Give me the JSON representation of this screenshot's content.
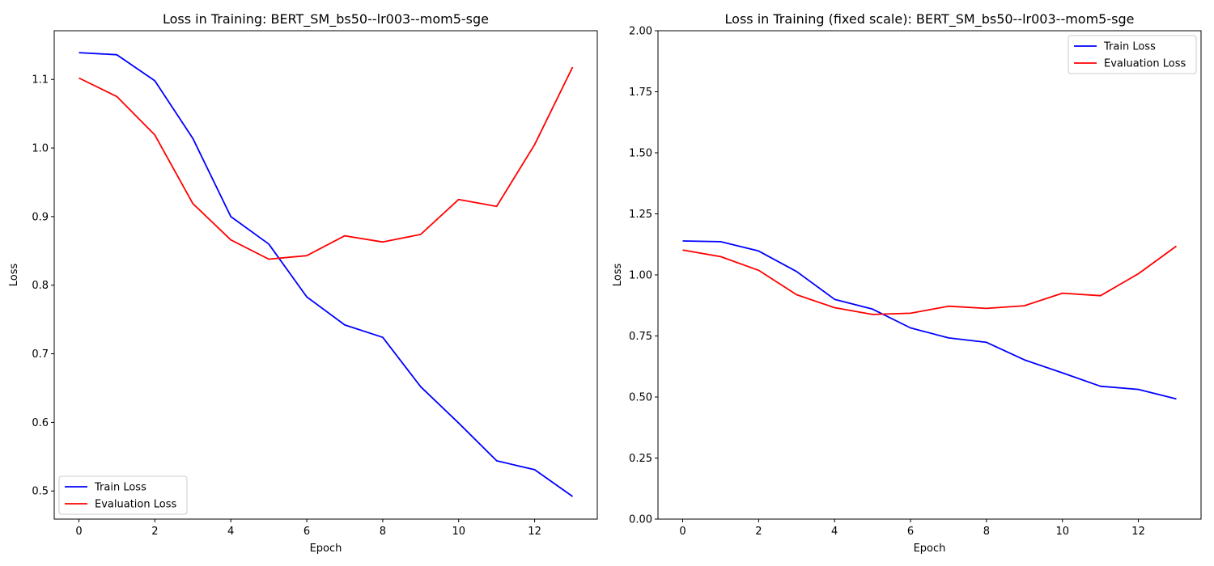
{
  "chart_data": [
    {
      "type": "line",
      "title": "Loss in Training: BERT_SM_bs50--lr003--mom5-sge",
      "xlabel": "Epoch",
      "ylabel": "Loss",
      "x": [
        0,
        1,
        2,
        3,
        4,
        5,
        6,
        7,
        8,
        9,
        10,
        11,
        12,
        13
      ],
      "xlim": [
        -0.65,
        13.65
      ],
      "ylim": [
        0.459,
        1.171
      ],
      "xticks": [
        0,
        2,
        4,
        6,
        8,
        10,
        12
      ],
      "xtick_labels": [
        "0",
        "2",
        "4",
        "6",
        "8",
        "10",
        "12"
      ],
      "yticks": [
        0.5,
        0.6,
        0.7,
        0.8,
        0.9,
        1.0,
        1.1
      ],
      "ytick_labels": [
        "0.5",
        "0.6",
        "0.7",
        "0.8",
        "0.9",
        "1.0",
        "1.1"
      ],
      "grid": false,
      "legend_position": "lower-left",
      "series": [
        {
          "name": "Train Loss",
          "color": "#0000ff",
          "values": [
            1.139,
            1.136,
            1.098,
            1.014,
            0.9,
            0.86,
            0.783,
            0.742,
            0.724,
            0.652,
            0.599,
            0.544,
            0.531,
            0.492
          ]
        },
        {
          "name": "Evaluation Loss",
          "color": "#ff0000",
          "values": [
            1.102,
            1.075,
            1.019,
            0.919,
            0.866,
            0.838,
            0.843,
            0.872,
            0.863,
            0.874,
            0.925,
            0.915,
            1.005,
            1.118
          ]
        }
      ]
    },
    {
      "type": "line",
      "title": "Loss in Training (fixed scale): BERT_SM_bs50--lr003--mom5-sge",
      "xlabel": "Epoch",
      "ylabel": "Loss",
      "x": [
        0,
        1,
        2,
        3,
        4,
        5,
        6,
        7,
        8,
        9,
        10,
        11,
        12,
        13
      ],
      "xlim": [
        -0.65,
        13.65
      ],
      "ylim": [
        0.0,
        2.0
      ],
      "xticks": [
        0,
        2,
        4,
        6,
        8,
        10,
        12
      ],
      "xtick_labels": [
        "0",
        "2",
        "4",
        "6",
        "8",
        "10",
        "12"
      ],
      "yticks": [
        0.0,
        0.25,
        0.5,
        0.75,
        1.0,
        1.25,
        1.5,
        1.75,
        2.0
      ],
      "ytick_labels": [
        "0.00",
        "0.25",
        "0.50",
        "0.75",
        "1.00",
        "1.25",
        "1.50",
        "1.75",
        "2.00"
      ],
      "grid": false,
      "legend_position": "upper-right",
      "series": [
        {
          "name": "Train Loss",
          "color": "#0000ff",
          "values": [
            1.139,
            1.136,
            1.098,
            1.014,
            0.9,
            0.86,
            0.783,
            0.742,
            0.724,
            0.652,
            0.599,
            0.544,
            0.531,
            0.492
          ]
        },
        {
          "name": "Evaluation Loss",
          "color": "#ff0000",
          "values": [
            1.102,
            1.075,
            1.019,
            0.919,
            0.866,
            0.838,
            0.843,
            0.872,
            0.863,
            0.874,
            0.925,
            0.915,
            1.005,
            1.118
          ]
        }
      ]
    }
  ]
}
